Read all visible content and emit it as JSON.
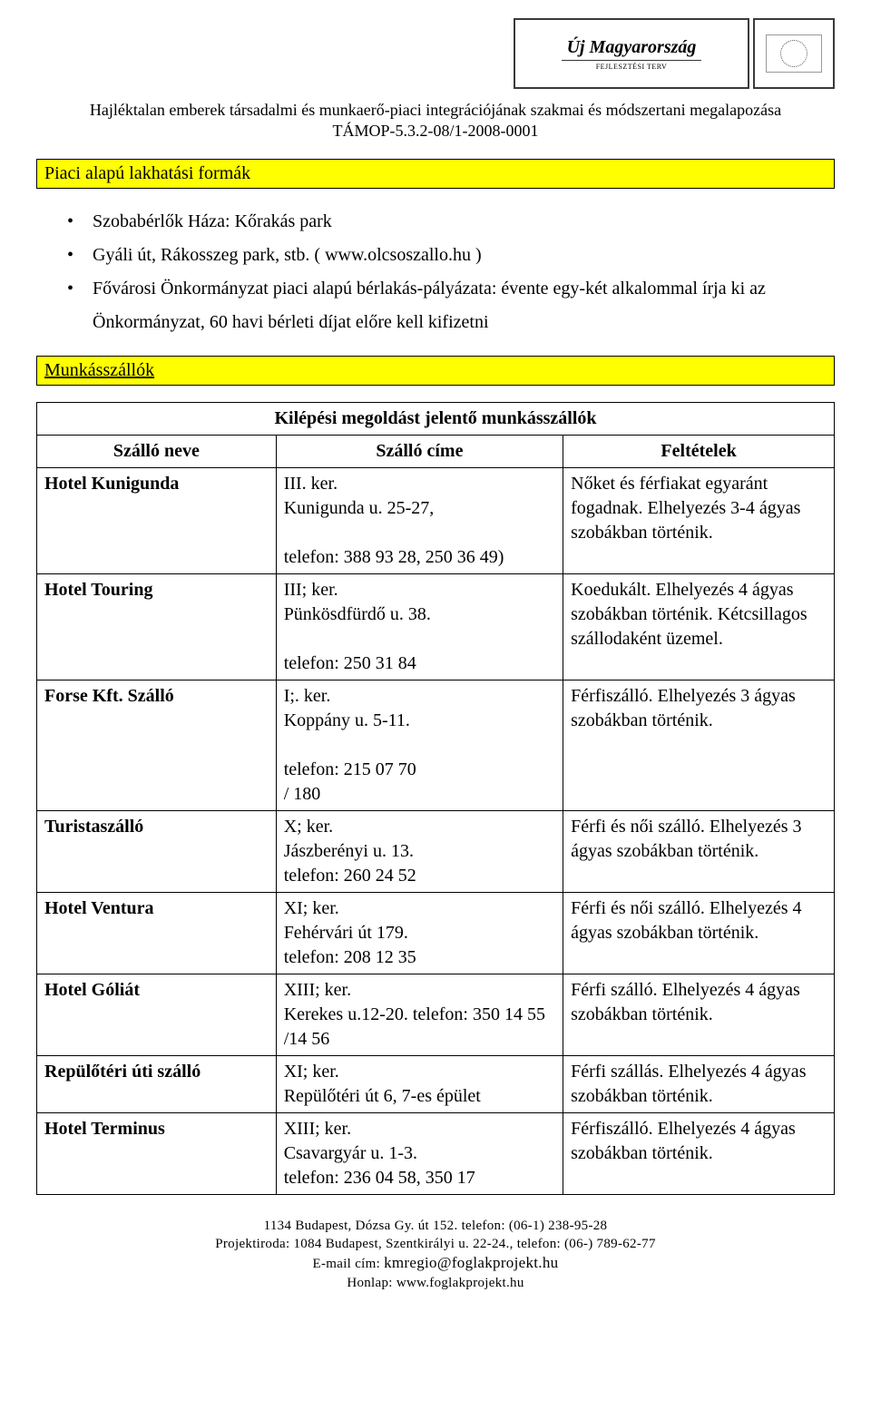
{
  "colors": {
    "yellow_bar": "#ffff00",
    "border": "#000000",
    "background": "#ffffff",
    "text": "#000000"
  },
  "typography": {
    "family": "Times New Roman",
    "body_size_pt": 15,
    "header_size_pt": 13,
    "footer_size_pt": 11
  },
  "logos": {
    "main_script": "Új Magyarország",
    "main_sub": "FEJLESZTÉSI TERV",
    "eu_alt": "EU flag"
  },
  "header": {
    "line1": "Hajléktalan emberek társadalmi és munkaerő-piaci integrációjának szakmai és módszertani megalapozása",
    "line2": "TÁMOP-5.3.2-08/1-2008-0001"
  },
  "section1": {
    "title": "Piaci alapú lakhatási formák",
    "bullets": [
      {
        "text": "Szobabérlők Háza: Kőrakás park"
      },
      {
        "text": "Gyáli út, Rákosszeg park, stb. ( ",
        "link_text": "www.olcsoszallo.hu",
        "after_link": " )"
      },
      {
        "text": "Fővárosi Önkormányzat piaci alapú bérlakás-pályázata: évente egy-két alkalommal írja ki az Önkormányzat, 60 havi bérleti díjat előre kell kifizetni"
      }
    ]
  },
  "section2": {
    "title": "Munkásszállók"
  },
  "table": {
    "caption": "Kilépési megoldást jelentő munkásszállók",
    "columns": [
      "Szálló neve",
      "Szálló címe",
      "Feltételek"
    ],
    "col_widths_pct": [
      30,
      36,
      34
    ],
    "rows": [
      {
        "name": "Hotel Kunigunda",
        "address": "III. ker.\n Kunigunda u. 25-27,\n\ntelefon: 388 93 28, 250 36 49)",
        "conditions": "Nőket és férfiakat egyaránt fogadnak. Elhelyezés 3-4 ágyas szobákban történik."
      },
      {
        "name": "Hotel Touring",
        "address": "III; ker.\nPünkösdfürdő u. 38.\n\ntelefon: 250 31 84",
        "conditions": "Koedukált. Elhelyezés 4 ágyas szobákban történik. Kétcsillagos szállodaként üzemel."
      },
      {
        "name": "Forse Kft. Szálló",
        "address": "I;. ker.\nKoppány u. 5-11.\n\ntelefon: 215 07 70\n/ 180",
        "conditions": "Férfiszálló. Elhelyezés 3 ágyas szobákban történik."
      },
      {
        "name": "Turistaszálló",
        "address": "X; ker.\nJászberényi u. 13.\ntelefon: 260 24 52",
        "conditions": "Férfi és női szálló. Elhelyezés 3 ágyas szobákban történik."
      },
      {
        "name": "Hotel Ventura",
        "address": "XI; ker.\nFehérvári út 179.\ntelefon: 208 12 35",
        "conditions": "Férfi és női szálló. Elhelyezés 4 ágyas szobákban történik."
      },
      {
        "name": "Hotel Góliát",
        "address": "XIII; ker.\nKerekes u.12-20. telefon: 350 14 55\n/14 56",
        "conditions": "Férfi  szálló. Elhelyezés 4 ágyas szobákban történik."
      },
      {
        "name": "Repülőtéri úti szálló",
        "address": "XI; ker.\nRepülőtéri út 6, 7-es épület",
        "conditions": "Férfi szállás. Elhelyezés 4 ágyas szobákban történik."
      },
      {
        "name": "Hotel Terminus",
        "address": "XIII; ker.\nCsavargyár u. 1-3.\ntelefon: 236 04 58, 350 17",
        "conditions": "Férfiszálló. Elhelyezés 4 ágyas szobákban történik."
      }
    ]
  },
  "footer": {
    "line1": "1134 Budapest, Dózsa Gy. út 152. telefon: (06-1) 238-95-28",
    "line2": "Projektiroda: 1084 Budapest, Szentkirályi u. 22-24., telefon: (06-) 789-62-77",
    "line3_label": "E-mail cím: ",
    "line3_value": "kmregio@foglakprojekt.hu",
    "line4_label": "Honlap: ",
    "line4_value": "www.foglakprojekt.hu"
  }
}
